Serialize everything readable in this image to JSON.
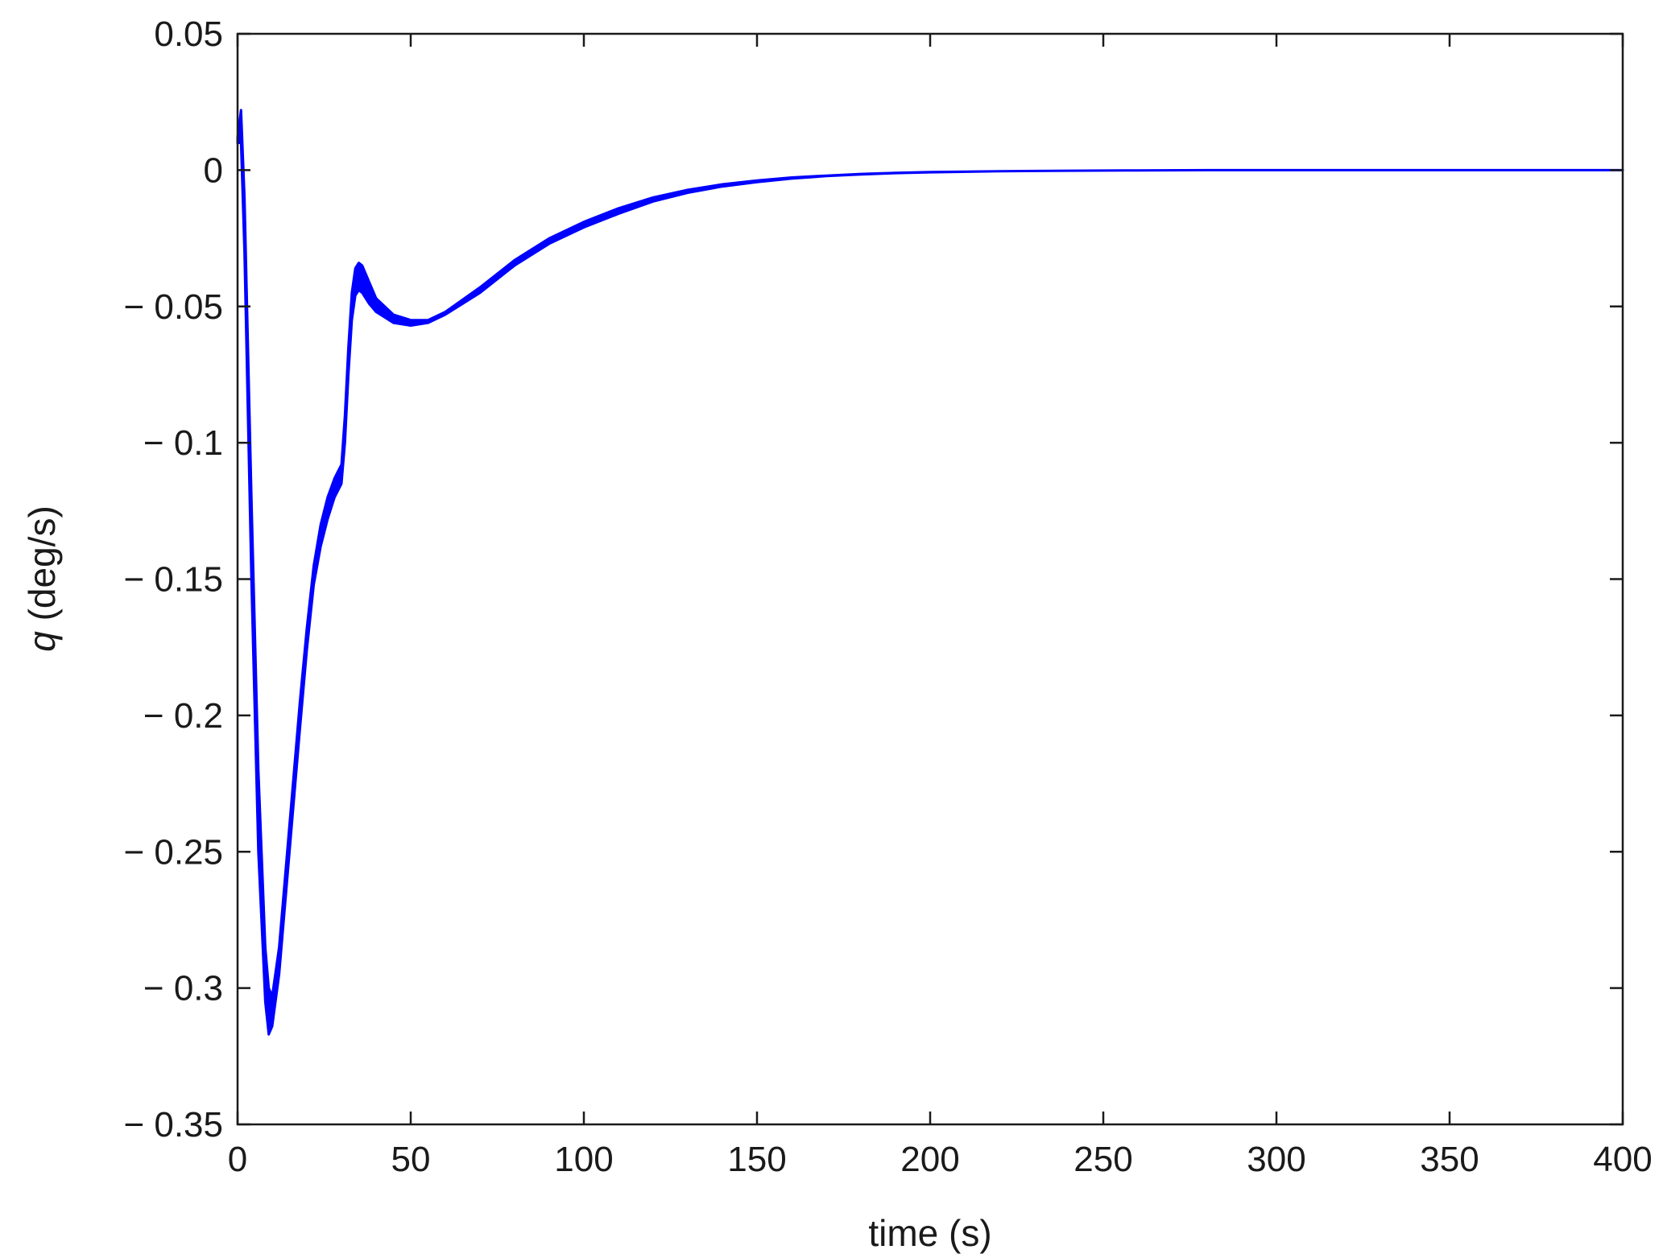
{
  "chart_data": {
    "type": "line",
    "title": "",
    "xlabel": "time (s)",
    "ylabel_symbol": "q",
    "ylabel_unit": " (deg/s)",
    "xlim": [
      0,
      400
    ],
    "ylim": [
      -0.35,
      0.05
    ],
    "xticks": [
      0,
      50,
      100,
      150,
      200,
      250,
      300,
      350,
      400
    ],
    "xtick_labels": [
      "0",
      "50",
      "100",
      "150",
      "200",
      "250",
      "300",
      "350",
      "400"
    ],
    "yticks": [
      0.05,
      0,
      -0.05,
      -0.1,
      -0.15,
      -0.2,
      -0.25,
      -0.3,
      -0.35
    ],
    "ytick_labels": [
      "0.05",
      "0",
      "− 0.05",
      "− 0.1",
      "− 0.15",
      "− 0.2",
      "− 0.25",
      "− 0.3",
      "− 0.35"
    ],
    "grid": false,
    "line_color": "#0000ff",
    "series": [
      {
        "upper": {
          "x": [
            0,
            1,
            2,
            4,
            6,
            8,
            9,
            10,
            12,
            14,
            16,
            18,
            20,
            22,
            24,
            26,
            28,
            30,
            31,
            32,
            33,
            34,
            35,
            36,
            38,
            40,
            45,
            50,
            55,
            60,
            70,
            80,
            90,
            100,
            110,
            120,
            130,
            140,
            150,
            160,
            170,
            180,
            190,
            200,
            220,
            240,
            260,
            280,
            300,
            350,
            400
          ],
          "y": [
            0.012,
            0.022,
            -0.01,
            -0.12,
            -0.22,
            -0.285,
            -0.3,
            -0.303,
            -0.285,
            -0.255,
            -0.225,
            -0.195,
            -0.168,
            -0.145,
            -0.13,
            -0.12,
            -0.113,
            -0.108,
            -0.09,
            -0.065,
            -0.045,
            -0.036,
            -0.034,
            -0.035,
            -0.041,
            -0.047,
            -0.053,
            -0.055,
            -0.055,
            -0.052,
            -0.043,
            -0.033,
            -0.025,
            -0.019,
            -0.014,
            -0.01,
            -0.0072,
            -0.0052,
            -0.0038,
            -0.0027,
            -0.002,
            -0.0014,
            -0.001,
            -0.0007,
            -0.0004,
            -0.0002,
            -0.0001,
            0,
            0,
            0,
            0
          ]
        },
        "lower": {
          "x": [
            0,
            1,
            2,
            4,
            6,
            8,
            9,
            10,
            12,
            14,
            16,
            18,
            20,
            22,
            24,
            26,
            28,
            30,
            31,
            32,
            33,
            34,
            35,
            36,
            38,
            40,
            45,
            50,
            55,
            60,
            70,
            80,
            90,
            100,
            110,
            120,
            130,
            140,
            150,
            160,
            170,
            180,
            190,
            200,
            220,
            240,
            260,
            280,
            300,
            350,
            400
          ],
          "y": [
            0.01,
            0.01,
            -0.03,
            -0.15,
            -0.25,
            -0.305,
            -0.317,
            -0.314,
            -0.295,
            -0.265,
            -0.235,
            -0.205,
            -0.176,
            -0.152,
            -0.138,
            -0.128,
            -0.12,
            -0.115,
            -0.1,
            -0.075,
            -0.055,
            -0.046,
            -0.044,
            -0.045,
            -0.049,
            -0.052,
            -0.056,
            -0.057,
            -0.056,
            -0.053,
            -0.045,
            -0.035,
            -0.027,
            -0.021,
            -0.016,
            -0.0115,
            -0.0083,
            -0.006,
            -0.0044,
            -0.0031,
            -0.0022,
            -0.0016,
            -0.0011,
            -0.0008,
            -0.0004,
            -0.0002,
            -0.0001,
            0,
            0,
            0,
            0
          ]
        }
      }
    ]
  }
}
